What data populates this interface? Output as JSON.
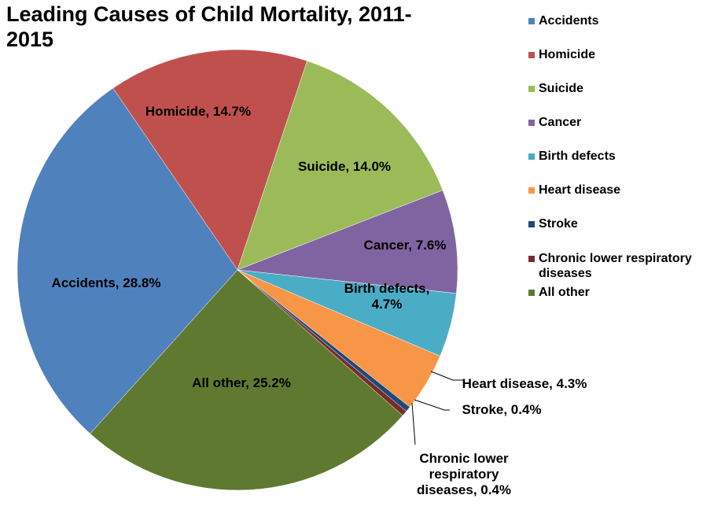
{
  "chart_data": {
    "type": "pie",
    "title": "Leading Causes of Child Mortality, 2011-2015",
    "categories": [
      "Accidents",
      "Homicide",
      "Suicide",
      "Cancer",
      "Birth defects",
      "Heart disease",
      "Stroke",
      "Chronic lower respiratory diseases",
      "All other"
    ],
    "values": [
      28.8,
      14.7,
      14.0,
      7.6,
      4.7,
      4.3,
      0.4,
      0.4,
      25.2
    ],
    "value_labels": [
      "Accidents, 28.8%",
      "Homicide, 14.7%",
      "Suicide, 14.0%",
      "Cancer, 7.6%",
      "Birth defects, 4.7%",
      "Heart disease, 4.3%",
      "Stroke, 0.4%",
      "Chronic lower respiratory diseases, 0.4%",
      "All other, 25.2%"
    ],
    "colors": [
      "#4f81bd",
      "#c0504d",
      "#9bbb59",
      "#8064a2",
      "#4bacc6",
      "#f79646",
      "#1f497d",
      "#772c2a",
      "#5f7a30"
    ],
    "legend": "right"
  }
}
